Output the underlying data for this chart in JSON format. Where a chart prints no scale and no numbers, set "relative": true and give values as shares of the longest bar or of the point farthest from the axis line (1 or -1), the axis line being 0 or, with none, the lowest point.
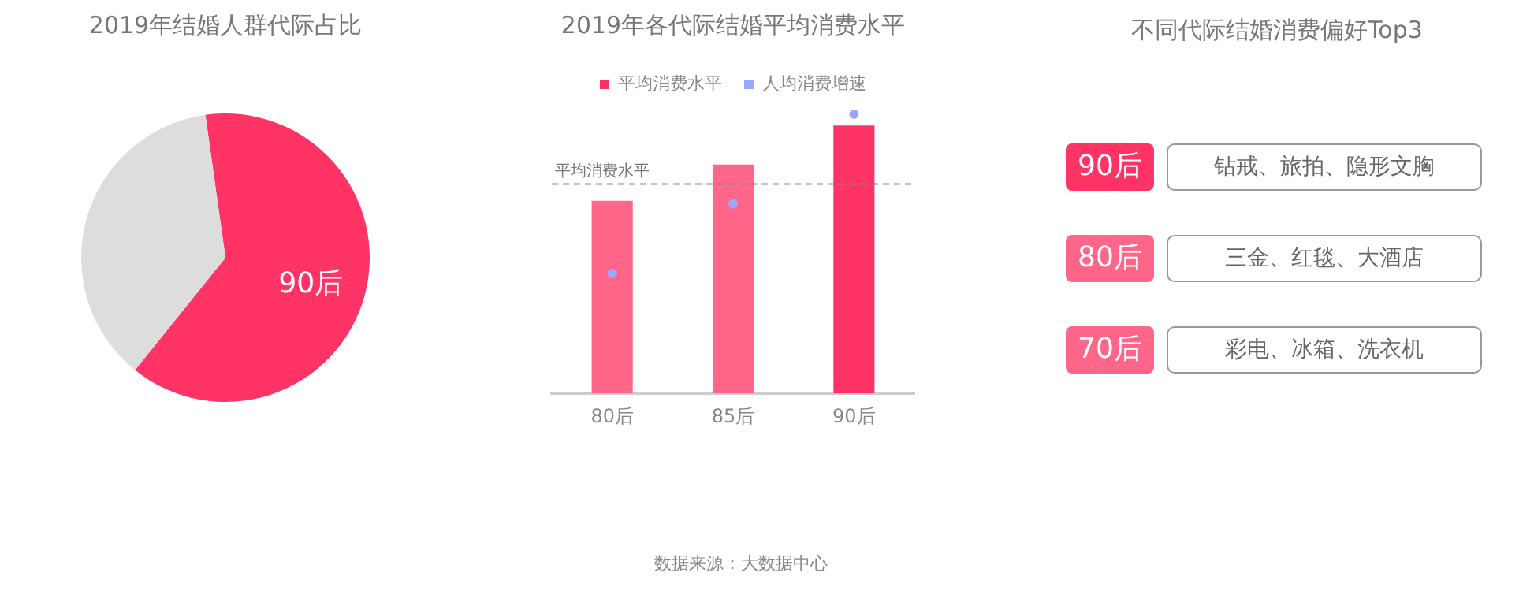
{
  "chart_data": [
    {
      "type": "pie",
      "title": "2019年结婚人群代际占比",
      "categories": [
        "90后",
        null
      ],
      "values": [
        63,
        37
      ],
      "colors": [
        "#ff3366",
        "#dddddd"
      ],
      "legend": false
    },
    {
      "type": "bar",
      "title": "2019年各代际结婚平均消费水平",
      "categories": [
        "80后",
        "85后",
        "90后"
      ],
      "relative": true,
      "legend": "top",
      "grid": false,
      "series": [
        {
          "name": "平均消费水平",
          "type": "bar",
          "colors": [
            "#ff668a",
            "#ff668a",
            "#ff3366"
          ],
          "color": "#ff3366",
          "values": [
            0.69,
            0.82,
            0.96
          ]
        },
        {
          "name": "人均消费增速",
          "type": "scatter",
          "color": "#99a8ff",
          "marker": "circle",
          "values": [
            0.43,
            0.68,
            1
          ]
        }
      ],
      "ref_lines": [
        {
          "axis": "y",
          "value": 0.75,
          "label": "平均消费水平",
          "line_style": "dashed",
          "color": "#888888"
        }
      ],
      "annotations": [
        "数据来源：大数据中心"
      ]
    },
    {
      "type": "other",
      "title": "不同代际结婚消费偏好Top3",
      "categories": [
        "90后",
        "80后",
        "70后"
      ],
      "colors": [
        "#ff3366",
        "#ff668a",
        "#ff668a"
      ],
      "annotations": [
        "钻戒、旅拍、隐形文胸",
        "三金、红毯、大酒店",
        "彩电、冰箱、洗衣机"
      ]
    }
  ]
}
